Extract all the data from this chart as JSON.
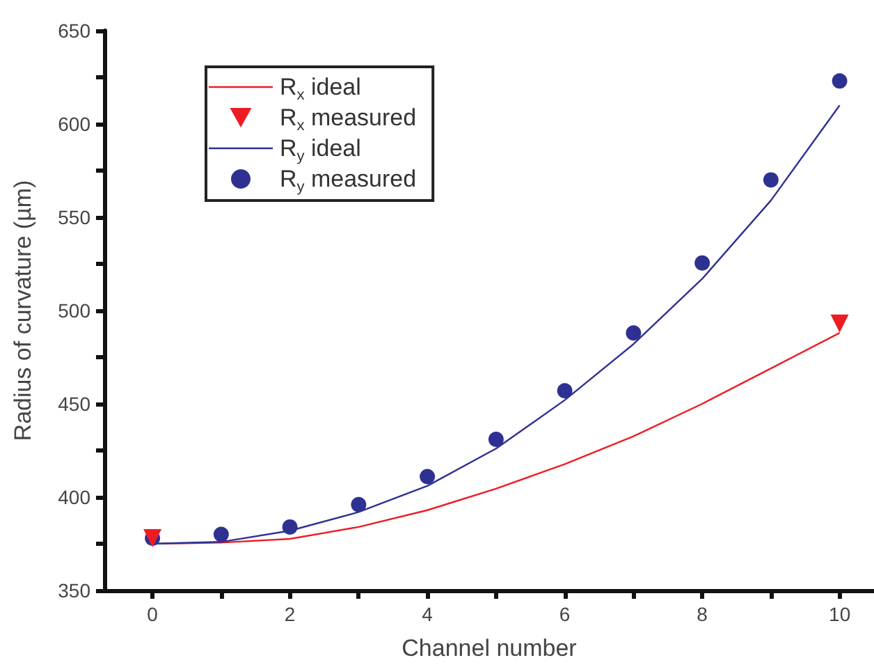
{
  "chart_data": {
    "type": "line",
    "xlabel": "Channel number",
    "ylabel": "Radius of curvature (µm)",
    "xlim": [
      -0.7,
      10.5
    ],
    "xticks": [
      0,
      {
        "value": 1,
        "label": null
      },
      2,
      {
        "value": 3,
        "label": null
      },
      4,
      {
        "value": 5,
        "label": null
      },
      6,
      {
        "value": 7,
        "label": null
      },
      8,
      {
        "value": 9,
        "label": null
      },
      10
    ],
    "ylim": [
      350,
      650
    ],
    "yticks": [
      350,
      {
        "value": 375,
        "label": null
      },
      400,
      {
        "value": 425,
        "label": null
      },
      450,
      {
        "value": 475,
        "label": null
      },
      500,
      {
        "value": 525,
        "label": null
      },
      550,
      {
        "value": 575,
        "label": null
      },
      600,
      {
        "value": 625,
        "label": null
      },
      650
    ],
    "grid": false,
    "legend": "top left",
    "series": [
      {
        "name": "R$_{x}$ ideal",
        "color": "#ed1c24",
        "marker": "none",
        "line_style": "solid",
        "x": [
          0,
          1,
          2,
          3,
          4,
          5,
          6,
          7,
          8,
          9,
          10
        ],
        "values": [
          375,
          375.6,
          377.6,
          384,
          393,
          404.5,
          417.7,
          432.6,
          450,
          469,
          488
        ]
      },
      {
        "name": "R$_{x}$ measured",
        "type": "scatter",
        "color": "#ed1c24",
        "marker": "triangle",
        "x": [
          0,
          10
        ],
        "values": [
          378,
          493
        ]
      },
      {
        "name": "R$_{y}$ ideal",
        "color": "#2e3192",
        "marker": "none",
        "line_style": "solid",
        "x": [
          0,
          1,
          2,
          3,
          4,
          5,
          6,
          7,
          8,
          9,
          10
        ],
        "values": [
          375,
          376,
          382,
          392,
          406,
          426,
          452,
          482,
          517,
          559,
          610
        ]
      },
      {
        "name": "R$_{y}$ measured",
        "type": "scatter",
        "color": "#2e3192",
        "marker": "circle",
        "x": [
          0,
          1,
          2,
          3,
          4,
          5,
          6,
          7,
          8,
          9,
          10
        ],
        "values": [
          378,
          380,
          384,
          396,
          411,
          431,
          457,
          488,
          525.5,
          570,
          623
        ]
      }
    ]
  }
}
